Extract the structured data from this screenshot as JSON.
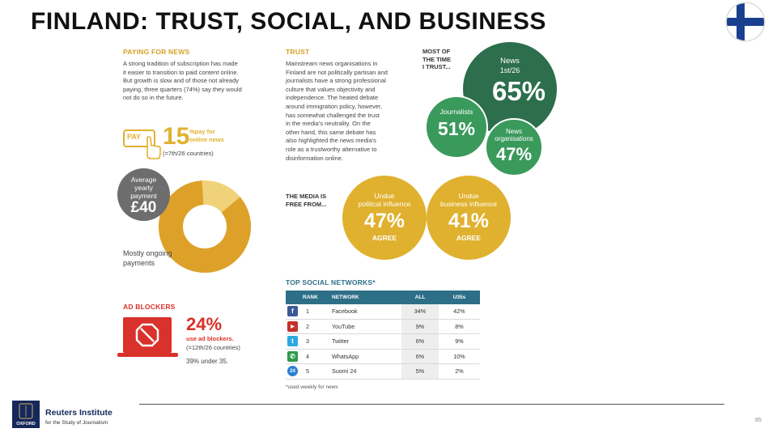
{
  "title": "FINLAND: TRUST, SOCIAL, AND BUSINESS",
  "paying": {
    "heading": "PAYING FOR NEWS",
    "lines": [
      "A strong tradition of subscription has made",
      "it easier to transition to paid content online.",
      "But growth is slow and of those not already",
      "paying, three quarters (74%) say they would",
      "not do so in the future."
    ],
    "pay_label": "PAY",
    "pay_value": "15",
    "pay_desc1": "%pay for",
    "pay_desc2": "online news",
    "pay_rank": "(=7th/26 countries)",
    "avg_label1": "Average",
    "avg_label2": "yearly",
    "avg_label3": "payment",
    "avg_value": "£40",
    "donut_label1": "Mostly ongoing",
    "donut_label2": "payments",
    "donut_fraction": 0.85
  },
  "adblock": {
    "heading": "AD BLOCKERS",
    "value": "24%",
    "desc1": "use ad blockers.",
    "desc2": "(=12th/26 countries)",
    "under": "39% under 35."
  },
  "trust": {
    "heading": "TRUST",
    "lines": [
      "Mainstream news organisations in",
      "Finland are not politically partisan and",
      "journalists have a strong professional",
      "culture that values objectivity and",
      "independence. The heated debate",
      "around immigration policy, however,",
      "has somewhat challenged the trust",
      "in the media's neutrality. On the",
      "other hand, this same debate has",
      "also highlighted the news media's",
      "role as a trustworthy alternative to",
      "disinformation online."
    ],
    "most_time1": "MOST OF",
    "most_time2": "THE TIME",
    "most_time3": "I TRUST...",
    "news_label1": "News",
    "news_label2": "1st/26",
    "news_value": "65%",
    "journalists_label": "Journalists",
    "journalists_value": "51%",
    "orgs_label1": "News",
    "orgs_label2": "organisations",
    "orgs_value": "47%",
    "free1": "THE MEDIA IS",
    "free2": "FREE FROM...",
    "political_label1": "Undue",
    "political_label2": "political influence",
    "political_value": "47%",
    "political_agree": "AGREE",
    "business_label1": "Undue",
    "business_label2": "business influence",
    "business_value": "41%",
    "business_agree": "AGREE"
  },
  "social": {
    "heading": "TOP SOCIAL NETWORKS*",
    "columns": [
      "RANK",
      "NETWORK",
      "ALL",
      "U35s"
    ],
    "rows": [
      {
        "rank": "1",
        "network": "Facebook",
        "all": "34%",
        "u35": "42%",
        "icon": "f",
        "color": "#3b5998"
      },
      {
        "rank": "2",
        "network": "YouTube",
        "all": "9%",
        "u35": "8%",
        "icon": "▶",
        "color": "#c4302b"
      },
      {
        "rank": "3",
        "network": "Twitter",
        "all": "6%",
        "u35": "9%",
        "icon": "t",
        "color": "#2aa9e0"
      },
      {
        "rank": "4",
        "network": "WhatsApp",
        "all": "6%",
        "u35": "10%",
        "icon": "✆",
        "color": "#2f9a4a"
      },
      {
        "rank": "5",
        "network": "Suomi 24",
        "all": "5%",
        "u35": "2%",
        "icon": "24",
        "color": "#2a7fd0"
      }
    ],
    "footnote": "*used weekly for news"
  },
  "footer": {
    "brand": "Reuters Institute",
    "tagline": "for the Study of Journalism",
    "logo": "OXFORD",
    "page": "85"
  },
  "colors": {
    "gold": "#e0b12f",
    "dark_green": "#2d6e4c",
    "green": "#3a9a5c",
    "gray": "#6d6d6d",
    "red": "#d9312b",
    "teal": "#2e6f88"
  }
}
